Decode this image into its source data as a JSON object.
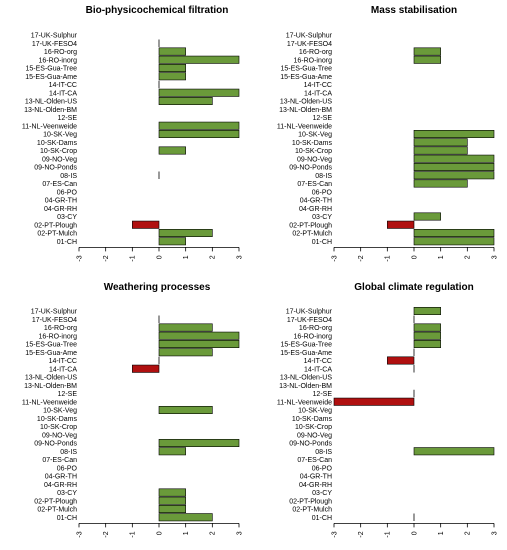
{
  "chart_data": [
    {
      "type": "bar",
      "orientation": "horizontal",
      "title": "Bio-physicochemical filtration",
      "categories": [
        "17-UK-Sulphur",
        "17-UK-FESO4",
        "16-RO-org",
        "16-RO-inorg",
        "15-ES-Gua-Tree",
        "15-ES-Gua-Ame",
        "14-IT-CC",
        "14-IT-CA",
        "13-NL-Olden-US",
        "13-NL-Olden-BM",
        "12-SE",
        "11-NL-Veenweide",
        "10-SK-Veg",
        "10-SK-Dams",
        "10-SK-Crop",
        "09-NO-Veg",
        "09-NO-Ponds",
        "08-IS",
        "07-ES-Can",
        "06-PO",
        "04-GR-TH",
        "04-GR-RH",
        "03-CY",
        "02-PT-Plough",
        "02-PT-Mulch",
        "01-CH"
      ],
      "values": [
        null,
        0,
        1,
        3,
        1,
        1,
        0,
        3,
        2,
        null,
        null,
        3,
        3,
        null,
        1,
        null,
        null,
        0,
        null,
        null,
        null,
        null,
        null,
        -1,
        2,
        1
      ],
      "xlim": [
        -3,
        3
      ],
      "xticks": [
        "-3",
        "-2",
        "-1",
        "0",
        "1",
        "2",
        "3"
      ],
      "positive_color": "#6a9a3a",
      "negative_color": "#b01010"
    },
    {
      "type": "bar",
      "orientation": "horizontal",
      "title": "Mass stabilisation",
      "categories": [
        "17-UK-Sulphur",
        "17-UK-FESO4",
        "16-RO-org",
        "16-RO-inorg",
        "15-ES-Gua-Tree",
        "15-ES-Gua-Ame",
        "14-IT-CC",
        "14-IT-CA",
        "13-NL-Olden-US",
        "13-NL-Olden-BM",
        "12-SE",
        "11-NL-Veenweide",
        "10-SK-Veg",
        "10-SK-Dams",
        "10-SK-Crop",
        "09-NO-Veg",
        "09-NO-Ponds",
        "08-IS",
        "07-ES-Can",
        "06-PO",
        "04-GR-TH",
        "04-GR-RH",
        "03-CY",
        "02-PT-Plough",
        "02-PT-Mulch",
        "01-CH"
      ],
      "values": [
        null,
        null,
        1,
        1,
        null,
        null,
        null,
        null,
        null,
        null,
        null,
        null,
        3,
        2,
        2,
        3,
        3,
        3,
        2,
        null,
        null,
        null,
        1,
        -1,
        3,
        3
      ],
      "xlim": [
        -3,
        3
      ],
      "xticks": [
        "-3",
        "-2",
        "-1",
        "0",
        "1",
        "2",
        "3"
      ],
      "positive_color": "#6a9a3a",
      "negative_color": "#b01010"
    },
    {
      "type": "bar",
      "orientation": "horizontal",
      "title": "Weathering processes",
      "categories": [
        "17-UK-Sulphur",
        "17-UK-FESO4",
        "16-RO-org",
        "16-RO-inorg",
        "15-ES-Gua-Tree",
        "15-ES-Gua-Ame",
        "14-IT-CC",
        "14-IT-CA",
        "13-NL-Olden-US",
        "13-NL-Olden-BM",
        "12-SE",
        "11-NL-Veenweide",
        "10-SK-Veg",
        "10-SK-Dams",
        "10-SK-Crop",
        "09-NO-Veg",
        "09-NO-Ponds",
        "08-IS",
        "07-ES-Can",
        "06-PO",
        "04-GR-TH",
        "04-GR-RH",
        "03-CY",
        "02-PT-Plough",
        "02-PT-Mulch",
        "01-CH"
      ],
      "values": [
        null,
        0,
        2,
        3,
        3,
        2,
        0,
        -1,
        null,
        null,
        null,
        null,
        2,
        null,
        null,
        null,
        3,
        1,
        null,
        null,
        null,
        null,
        1,
        1,
        1,
        2
      ],
      "xlim": [
        -3,
        3
      ],
      "xticks": [
        "-3",
        "-2",
        "-1",
        "0",
        "1",
        "2",
        "3"
      ],
      "positive_color": "#6a9a3a",
      "negative_color": "#b01010"
    },
    {
      "type": "bar",
      "orientation": "horizontal",
      "title": "Global climate regulation",
      "categories": [
        "17-UK-Sulphur",
        "17-UK-FESO4",
        "16-RO-org",
        "16-RO-inorg",
        "15-ES-Gua-Tree",
        "15-ES-Gua-Ame",
        "14-IT-CC",
        "14-IT-CA",
        "13-NL-Olden-US",
        "13-NL-Olden-BM",
        "12-SE",
        "11-NL-Veenweide",
        "10-SK-Veg",
        "10-SK-Dams",
        "10-SK-Crop",
        "09-NO-Veg",
        "09-NO-Ponds",
        "08-IS",
        "07-ES-Can",
        "06-PO",
        "04-GR-TH",
        "04-GR-RH",
        "03-CY",
        "02-PT-Plough",
        "02-PT-Mulch",
        "01-CH"
      ],
      "values": [
        1,
        0,
        1,
        1,
        1,
        0,
        -1,
        0,
        null,
        null,
        0,
        -3,
        null,
        null,
        null,
        null,
        null,
        3,
        null,
        null,
        null,
        null,
        null,
        null,
        null,
        0
      ],
      "xlim": [
        -3,
        3
      ],
      "xticks": [
        "-3",
        "-2",
        "-1",
        "0",
        "1",
        "2",
        "3"
      ],
      "positive_color": "#6a9a3a",
      "negative_color": "#b01010"
    }
  ]
}
